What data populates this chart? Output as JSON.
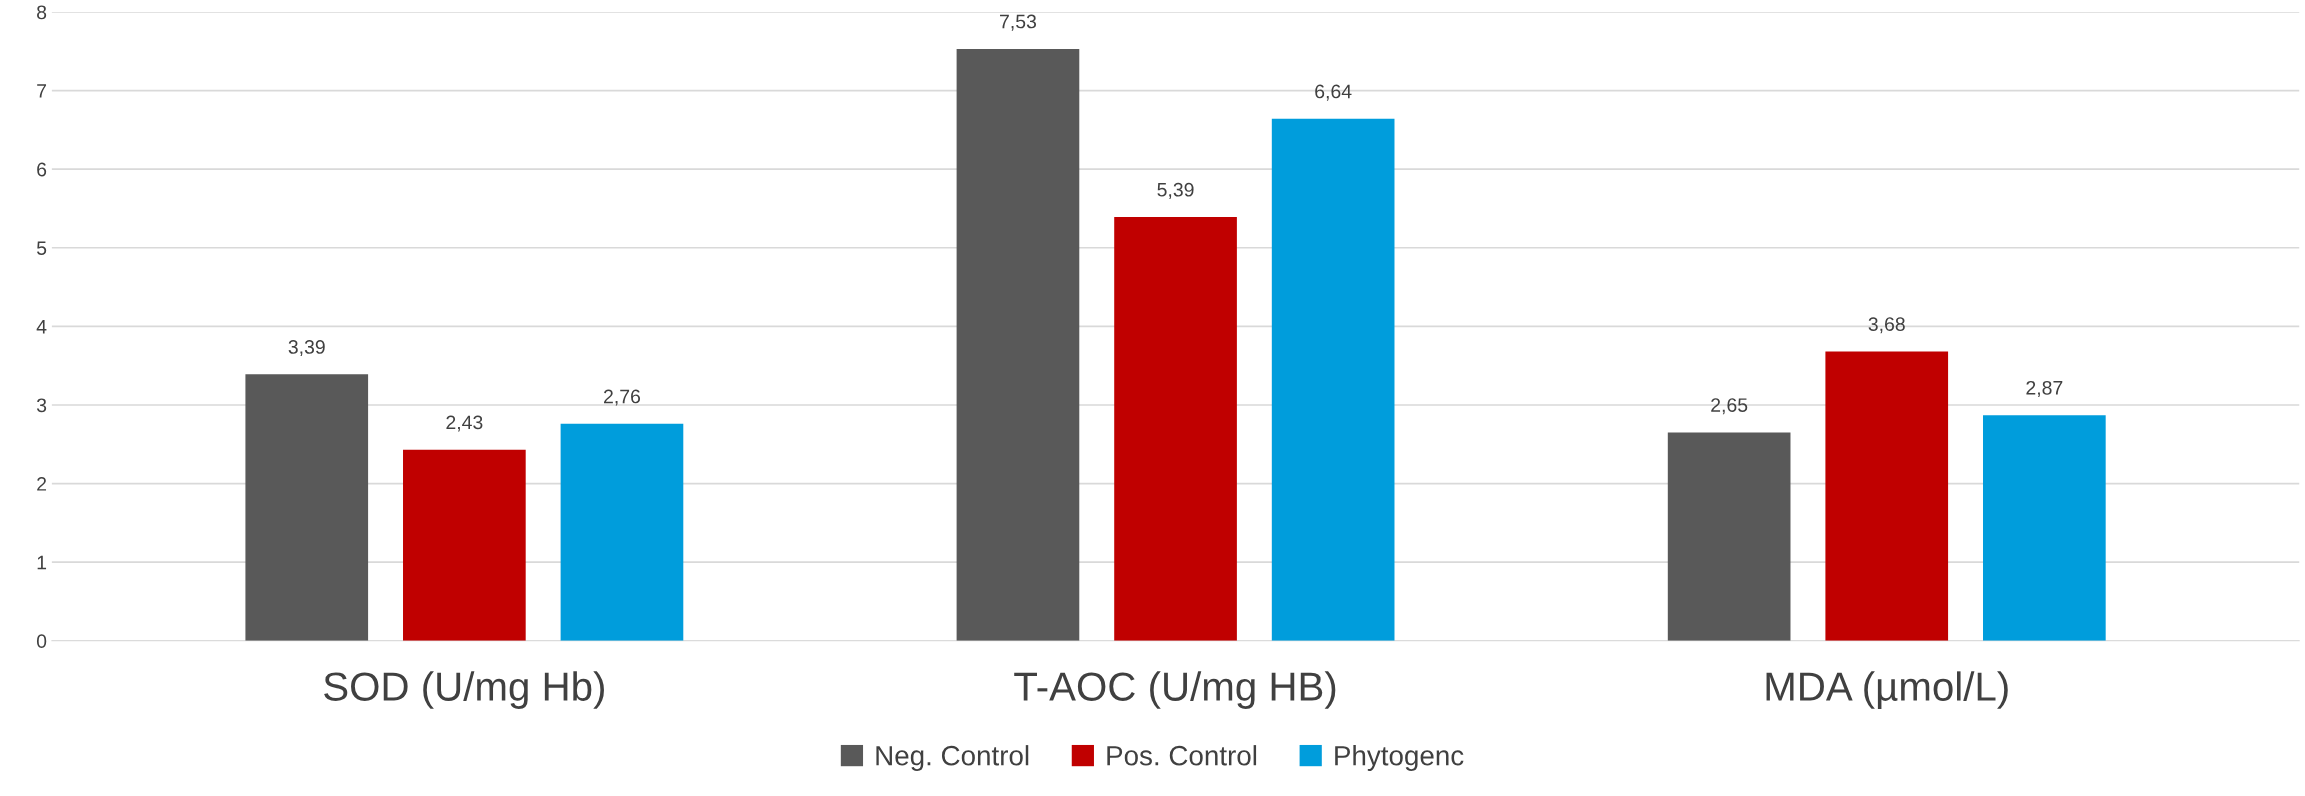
{
  "chart_data": {
    "type": "bar",
    "categories": [
      "SOD (U/mg Hb)",
      "T-AOC (U/mg HB)",
      "MDA (µmol/L)"
    ],
    "series": [
      {
        "name": "Neg. Control",
        "color": "#595959",
        "values": [
          3.39,
          7.53,
          2.65
        ],
        "value_labels": [
          "3,39",
          "7,53",
          "2,65"
        ]
      },
      {
        "name": "Pos. Control",
        "color": "#c00000",
        "values": [
          2.43,
          5.39,
          3.68
        ],
        "value_labels": [
          "2,43",
          "5,39",
          "3,68"
        ]
      },
      {
        "name": "Phytogenc",
        "color": "#009ddc",
        "values": [
          2.76,
          6.64,
          2.87
        ],
        "value_labels": [
          "2,76",
          "6,64",
          "2,87"
        ]
      }
    ],
    "ylim": [
      0,
      8
    ],
    "yticks": [
      0,
      1,
      2,
      3,
      4,
      5,
      6,
      7,
      8
    ],
    "grid": "y",
    "legend": "bottom"
  }
}
